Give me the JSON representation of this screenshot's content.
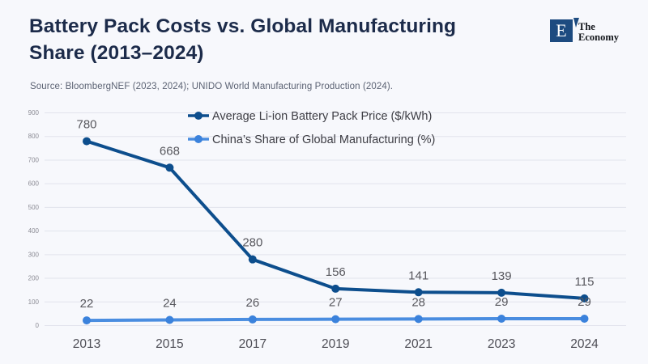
{
  "header": {
    "title": "Battery Pack Costs vs. Global Manufacturing Share (2013–2024)",
    "title_line1": "Battery Pack Costs vs. Global Manufacturing",
    "title_line2": "Share (2013–2024)",
    "source": "Source: BloombergNEF (2023, 2024); UNIDO World Manufacturing Production (2024).",
    "logo": {
      "letter": "E",
      "name_line1": "The",
      "name_line2": "Economy"
    }
  },
  "colors": {
    "background": "#f7f8fc",
    "title": "#1c2b4a",
    "grid": "#e2e3ec",
    "price_line": "#0d4e8d",
    "share_line": "#4a8de0",
    "share_marker": "#3b82dc",
    "logo_navy": "#1d4b80"
  },
  "chart_data": {
    "type": "line",
    "categories": [
      "2013",
      "2015",
      "2017",
      "2019",
      "2021",
      "2023",
      "2024"
    ],
    "series": [
      {
        "name": "Average Li-ion Battery Pack Price ($/kWh)",
        "values": [
          780,
          668,
          280,
          156,
          141,
          139,
          115
        ],
        "color": "#0d4e8d",
        "marker_color": "#0d4e8d"
      },
      {
        "name": "China’s Share of Global Manufacturing (%)",
        "values": [
          22,
          24,
          26,
          27,
          28,
          29,
          29
        ],
        "color": "#4a8de0",
        "marker_color": "#3b82dc"
      }
    ],
    "title": "Battery Pack Costs vs. Global Manufacturing Share (2013–2024)",
    "xlabel": "",
    "ylabel": "",
    "ylim": [
      0,
      900
    ],
    "ytick_step": 100,
    "grid": true,
    "legend_position": "top-center",
    "data_labels": true
  }
}
